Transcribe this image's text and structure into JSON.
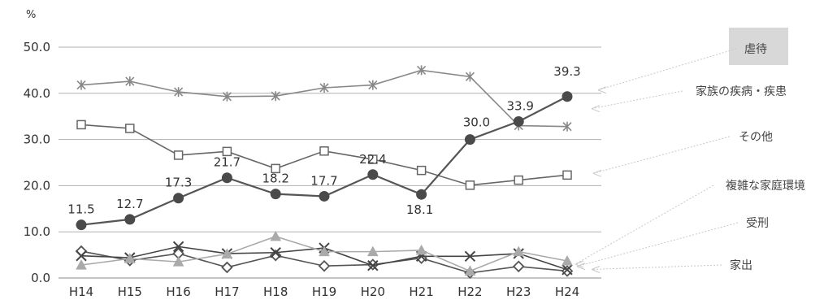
{
  "chart_data": {
    "type": "line",
    "unit": "%",
    "title": "",
    "xlabel": "",
    "ylabel": "",
    "ylim": [
      0,
      50
    ],
    "yticks": [
      "0.0",
      "10.0",
      "20.0",
      "30.0",
      "40.0",
      "50.0"
    ],
    "categories": [
      "H14",
      "H15",
      "H16",
      "H17",
      "H18",
      "H19",
      "H20",
      "H21",
      "H22",
      "H23",
      "H24"
    ],
    "grid": "horizontal",
    "series": [
      {
        "name": "虐待",
        "marker": "circle-filled",
        "color": "#555555",
        "values": [
          11.5,
          12.7,
          17.3,
          21.7,
          18.2,
          17.7,
          22.4,
          18.1,
          30.0,
          33.9,
          39.3
        ],
        "labels": [
          "11.5",
          "12.7",
          "17.3",
          "21.7",
          "18.2",
          "17.7",
          "22.4",
          "18.1",
          "30.0",
          "33.9",
          "39.3"
        ]
      },
      {
        "name": "家族の疾病・疾患",
        "marker": "asterisk",
        "color": "#888888",
        "values": [
          41.8,
          42.6,
          40.3,
          39.3,
          39.4,
          41.2,
          41.8,
          45.0,
          43.6,
          33.0,
          32.8
        ]
      },
      {
        "name": "その他",
        "marker": "square-open",
        "color": "#666666",
        "values": [
          33.2,
          32.4,
          26.6,
          27.4,
          23.7,
          27.5,
          25.7,
          23.3,
          20.1,
          21.2,
          22.3
        ]
      },
      {
        "name": "複雑な家庭環境",
        "marker": "triangle",
        "color": "#aaaaaa",
        "values": [
          2.8,
          4.2,
          3.5,
          5.2,
          9.0,
          5.7,
          5.7,
          6.0,
          1.5,
          5.7,
          3.7
        ]
      },
      {
        "name": "受刑",
        "marker": "cross",
        "color": "#444444",
        "values": [
          4.8,
          4.4,
          6.8,
          5.3,
          5.5,
          6.5,
          2.7,
          4.7,
          4.7,
          5.3,
          1.8
        ]
      },
      {
        "name": "家出",
        "marker": "diamond",
        "color": "#555555",
        "values": [
          5.8,
          3.8,
          5.3,
          2.3,
          4.9,
          2.6,
          2.9,
          4.3,
          1.1,
          2.5,
          1.5
        ]
      }
    ],
    "legend": [
      {
        "name": "虐待",
        "boxed": true
      },
      {
        "name": "家族の疾病・疾患",
        "boxed": false
      },
      {
        "name": "その他",
        "boxed": false
      },
      {
        "name": "複雑な家庭環境",
        "boxed": false
      },
      {
        "name": "受刑",
        "boxed": false
      },
      {
        "name": "家出",
        "boxed": false
      }
    ]
  }
}
